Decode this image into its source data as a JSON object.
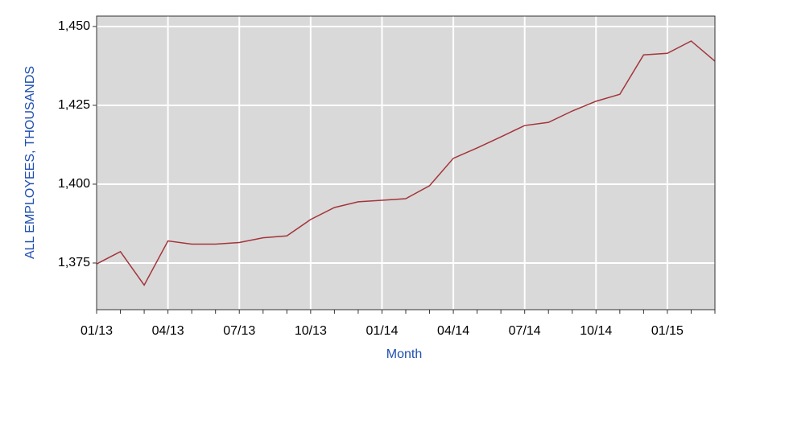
{
  "chart_data": {
    "type": "line",
    "x_label": "Month",
    "y_label": "ALL EMPLOYEES, THOUSANDS",
    "categories": [
      "01/13",
      null,
      null,
      "04/13",
      null,
      null,
      "07/13",
      null,
      null,
      "10/13",
      null,
      null,
      "01/14",
      null,
      null,
      "04/14",
      null,
      null,
      "07/14",
      null,
      null,
      "10/14",
      null,
      null,
      "01/15",
      null,
      null
    ],
    "series": [
      {
        "name": "All employees",
        "color": "#a3343a",
        "values": [
          1374.7,
          1378.6,
          1368,
          1382,
          1381,
          1381,
          1381.5,
          1383,
          1383.6,
          1388.8,
          1392.6,
          1394.4,
          1394.9,
          1395.4,
          1399.5,
          1408.2,
          1411.5,
          1415,
          1418.6,
          1419.6,
          1423.2,
          1426.3,
          1428.5,
          1441,
          1441.5,
          1445.4,
          1439
        ]
      }
    ],
    "ylim": [
      1360.2,
      1453.3
    ],
    "yticks": [
      {
        "value": 1375,
        "label": "1,375"
      },
      {
        "value": 1400,
        "label": "1,400"
      },
      {
        "value": 1425,
        "label": "1,425"
      },
      {
        "value": 1450,
        "label": "1,450"
      }
    ],
    "grid": true,
    "background": "#d9d9d9",
    "label_color": "#1f4fb0"
  }
}
